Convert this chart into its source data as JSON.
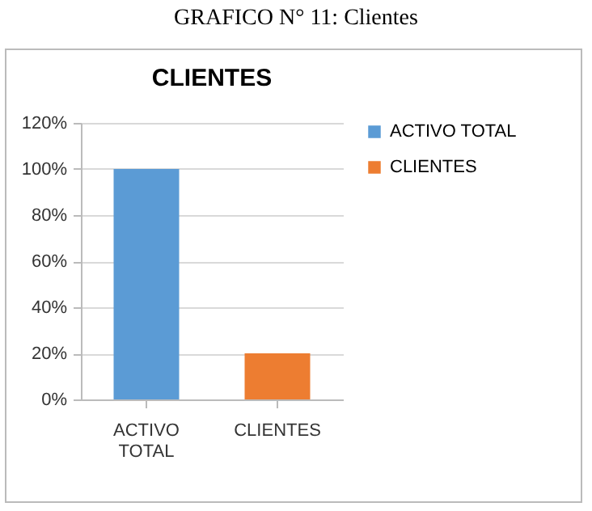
{
  "chart_data": {
    "type": "bar",
    "title": "CLIENTES",
    "annotations": [
      "GRAFICO N° 11: Clientes"
    ],
    "categories": [
      "ACTIVO TOTAL",
      "CLIENTES"
    ],
    "series": [
      {
        "name": "ACTIVO TOTAL",
        "color": "#5b9bd5",
        "values": [
          100,
          null
        ]
      },
      {
        "name": "CLIENTES",
        "color": "#ed7d31",
        "values": [
          null,
          20
        ]
      }
    ],
    "stacked": true,
    "ylim": [
      0,
      120
    ],
    "yticks": [
      {
        "value": 0,
        "label": "0%"
      },
      {
        "value": 20,
        "label": "20%"
      },
      {
        "value": 40,
        "label": "40%"
      },
      {
        "value": 60,
        "label": "60%"
      },
      {
        "value": 80,
        "label": "80%"
      },
      {
        "value": 100,
        "label": "100%"
      },
      {
        "value": 120,
        "label": "120%"
      }
    ],
    "grid": "y",
    "legend": "right"
  }
}
